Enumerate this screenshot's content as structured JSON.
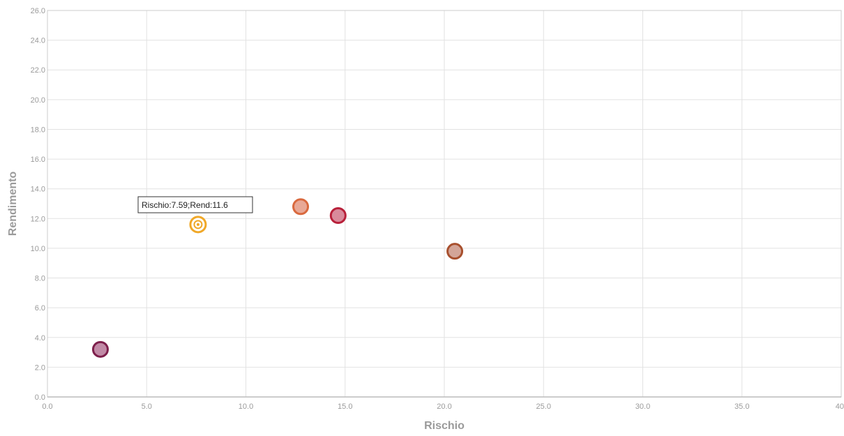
{
  "chart_data": {
    "type": "scatter",
    "title": "",
    "xlabel": "Rischio",
    "ylabel": "Rendimento",
    "xlim": [
      0,
      40
    ],
    "ylim": [
      0,
      26
    ],
    "x_ticks": [
      "0.0",
      "5.0",
      "10.0",
      "15.0",
      "20.0",
      "25.0",
      "30.0",
      "35.0",
      "40"
    ],
    "y_ticks": [
      "0.0",
      "2.0",
      "4.0",
      "6.0",
      "8.0",
      "10.0",
      "12.0",
      "14.0",
      "16.0",
      "18.0",
      "20.0",
      "22.0",
      "24.0",
      "26.0"
    ],
    "grid": true,
    "points": [
      {
        "x": 2.67,
        "y": 3.2,
        "fill": "#c18aa6",
        "stroke": "#7d1f4b"
      },
      {
        "x": 7.59,
        "y": 11.6,
        "fill": "#ffffff",
        "stroke": "#f0a828",
        "highlighted": true
      },
      {
        "x": 12.76,
        "y": 12.8,
        "fill": "#e8a896",
        "stroke": "#d9693e"
      },
      {
        "x": 14.65,
        "y": 12.2,
        "fill": "#d98a9b",
        "stroke": "#b8203a"
      },
      {
        "x": 20.53,
        "y": 9.8,
        "fill": "#d3a598",
        "stroke": "#a8502e"
      }
    ],
    "tooltip": {
      "text": "Rischio:7.59;Rend:11.6"
    }
  },
  "colors": {
    "grid": "#e2e2e2",
    "axis": "#cccccc",
    "label": "#9a9a9a"
  }
}
